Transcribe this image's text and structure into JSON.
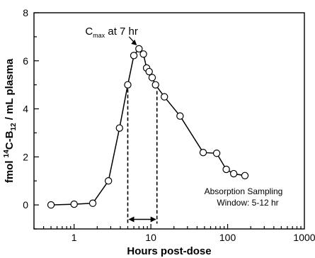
{
  "chart_data": {
    "type": "scatter",
    "xscale": "log",
    "xlim": [
      0.3,
      1000
    ],
    "ylim": [
      -1,
      8
    ],
    "xlabel": "Hours post-dose",
    "ylabel": {
      "prefix": "fmol ",
      "sup": "14",
      "mid": "C-B",
      "sub": "12",
      "suffix": " / mL plasma"
    },
    "xticks": [
      {
        "value": 1,
        "label": "1"
      },
      {
        "value": 10,
        "label": "10"
      },
      {
        "value": 100,
        "label": "100"
      },
      {
        "value": 1000,
        "label": "1000"
      }
    ],
    "yticks": [
      {
        "value": 0,
        "label": "0"
      },
      {
        "value": 2,
        "label": "2"
      },
      {
        "value": 4,
        "label": "4"
      },
      {
        "value": 6,
        "label": "6"
      },
      {
        "value": 8,
        "label": "8"
      }
    ],
    "grid": false,
    "series": [
      {
        "style": "line-with-open-circles",
        "x": [
          0.5,
          1,
          1.75,
          2.8,
          3.9,
          5,
          6,
          7,
          8,
          8.8,
          9.5,
          10.4,
          11.5,
          15,
          24,
          48,
          72,
          96,
          120,
          168
        ],
        "y": [
          0,
          0.03,
          0.07,
          1.0,
          3.2,
          5.0,
          6.22,
          6.5,
          6.28,
          5.7,
          5.55,
          5.3,
          5.0,
          4.5,
          3.7,
          2.18,
          2.15,
          1.48,
          1.3,
          1.22
        ]
      }
    ],
    "annotations": {
      "cmax": {
        "main": "C",
        "sub": "max",
        "rest": " at 7 hr",
        "x": 7,
        "y": 6.5
      },
      "window": {
        "line1": "Absorption Sampling",
        "line2": "Window: 5-12 hr",
        "start": 5,
        "end": 12,
        "arrow_y": -0.6
      }
    }
  }
}
